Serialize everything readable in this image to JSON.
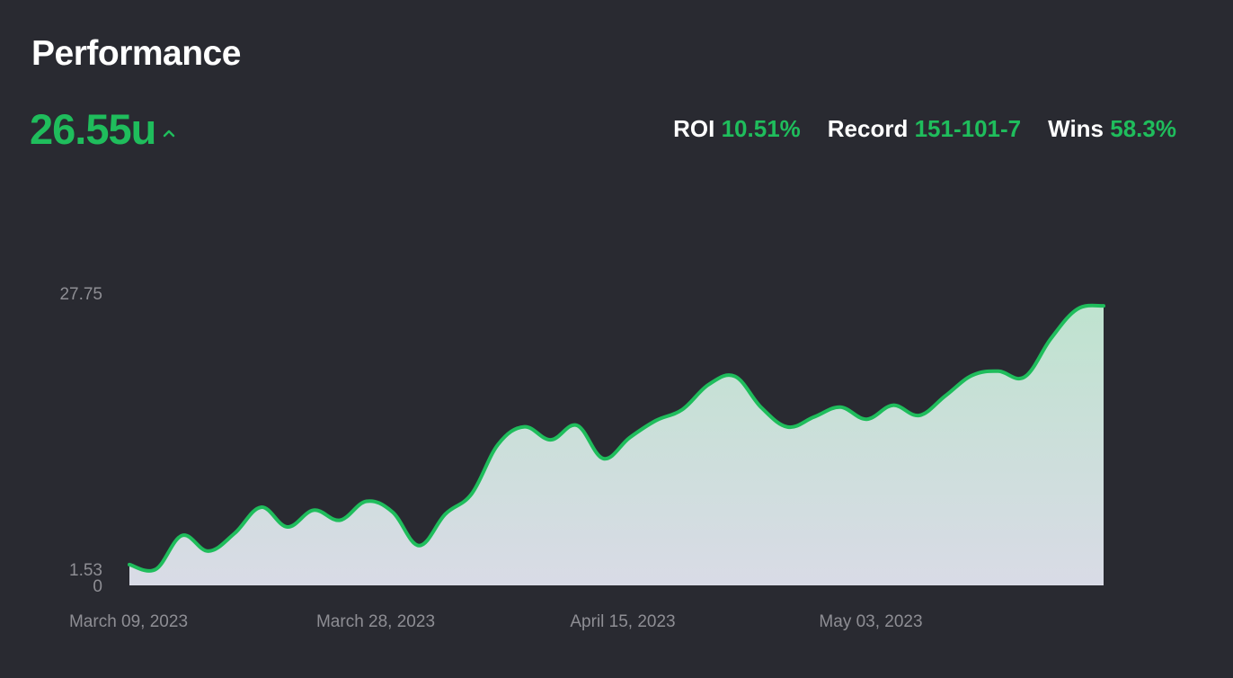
{
  "header": {
    "title": "Performance",
    "total_units": "26.55u",
    "trend_icon": "chevron-up-icon"
  },
  "stats": {
    "roi_label": "ROI",
    "roi_value": "10.51%",
    "record_label": "Record",
    "record_value": "151-101-7",
    "wins_label": "Wins",
    "wins_value": "58.3%"
  },
  "colors": {
    "background": "#292a31",
    "accent": "#1fbd5c",
    "fill_top": "#bfe3cf",
    "fill_bottom": "#d9dbe6"
  },
  "chart_data": {
    "type": "area",
    "title": "",
    "xlabel": "",
    "ylabel": "",
    "ylim": [
      0,
      27.75
    ],
    "y_ticks": [
      "27.75",
      "1.53",
      "0"
    ],
    "x_tick_labels": [
      "March 09, 2023",
      "March 28, 2023",
      "April 15, 2023",
      "May 03, 2023"
    ],
    "x_start": "2023-03-09",
    "x_end": "2023-05-22",
    "grid": false,
    "series": [
      {
        "values": [
          1.97,
          1.53,
          4.74,
          3.25,
          4.95,
          7.42,
          5.55,
          7.14,
          6.19,
          7.98,
          6.95,
          3.78,
          6.77,
          8.7,
          13.38,
          15.06,
          13.82,
          15.19,
          12.04,
          14.03,
          15.65,
          16.69,
          19.07,
          19.84,
          16.89,
          15.04,
          15.98,
          16.92,
          15.78,
          17.1,
          16.14,
          18.02,
          19.93,
          20.34,
          19.79,
          23.44,
          26.23,
          26.55
        ]
      }
    ]
  }
}
